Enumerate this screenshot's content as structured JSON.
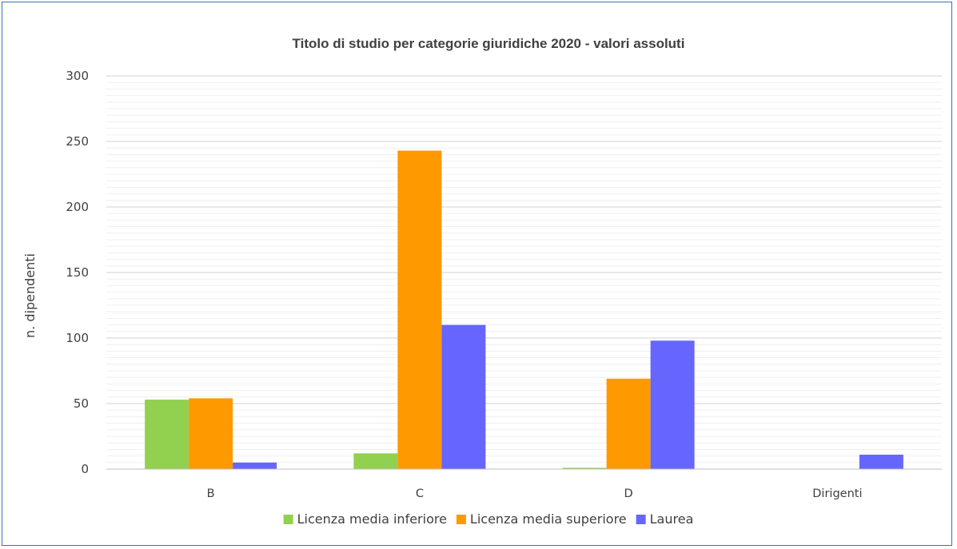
{
  "chart_data": {
    "type": "bar",
    "title": "Titolo di studio per categorie giuridiche 2020 - valori assoluti",
    "xlabel": "",
    "ylabel": "n. dipendenti",
    "ylim": [
      0,
      300
    ],
    "yticks": [
      0,
      50,
      100,
      150,
      200,
      250,
      300
    ],
    "grid": true,
    "legend_position": "bottom",
    "categories": [
      "B",
      "C",
      "D",
      "Dirigenti"
    ],
    "series": [
      {
        "name": "Licenza media inferiore",
        "color": "#92d050",
        "values": [
          53,
          12,
          1,
          0
        ]
      },
      {
        "name": "Licenza media superiore",
        "color": "#ff9900",
        "values": [
          54,
          243,
          69,
          0
        ]
      },
      {
        "name": "Laurea",
        "color": "#6666ff",
        "values": [
          5,
          110,
          98,
          11
        ]
      }
    ]
  }
}
